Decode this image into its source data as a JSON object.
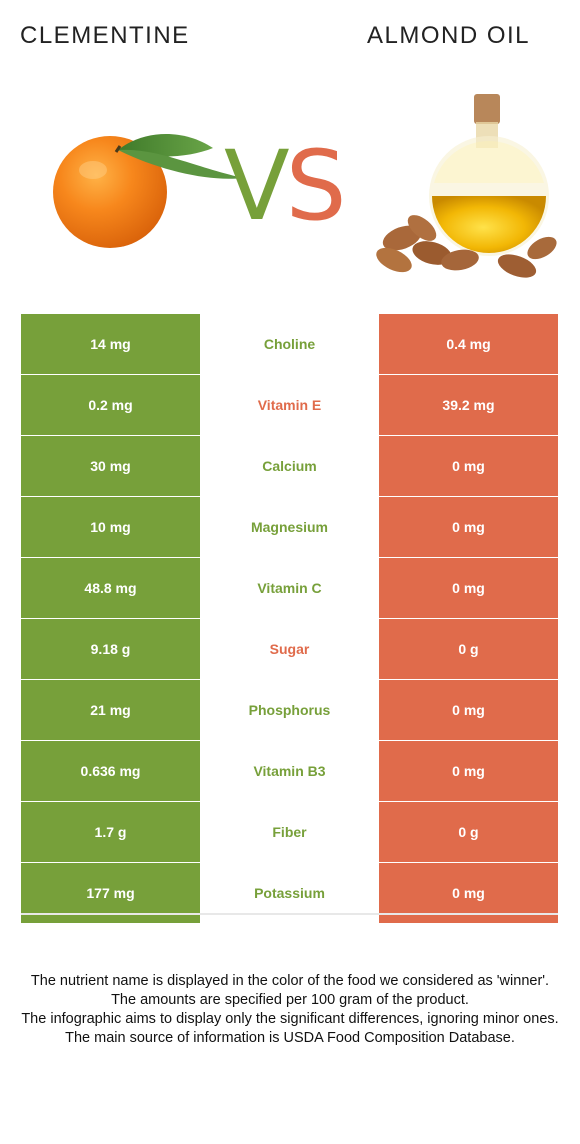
{
  "header": {
    "left_title": "CLEMENTINE",
    "right_title": "ALMOND OIL",
    "vs_v": "V",
    "vs_s": "S"
  },
  "colors": {
    "left_food": "#77a03a",
    "right_food": "#e06b4b"
  },
  "images": {
    "left": "clementine-image",
    "right": "almond-oil-image"
  },
  "rows": [
    {
      "left": "14 mg",
      "nutrient": "Choline",
      "right": "0.4 mg",
      "winner": "left"
    },
    {
      "left": "0.2 mg",
      "nutrient": "Vitamin E",
      "right": "39.2 mg",
      "winner": "right"
    },
    {
      "left": "30 mg",
      "nutrient": "Calcium",
      "right": "0 mg",
      "winner": "left"
    },
    {
      "left": "10 mg",
      "nutrient": "Magnesium",
      "right": "0 mg",
      "winner": "left"
    },
    {
      "left": "48.8 mg",
      "nutrient": "Vitamin C",
      "right": "0 mg",
      "winner": "left"
    },
    {
      "left": "9.18 g",
      "nutrient": "Sugar",
      "right": "0 g",
      "winner": "right"
    },
    {
      "left": "21 mg",
      "nutrient": "Phosphorus",
      "right": "0 mg",
      "winner": "left"
    },
    {
      "left": "0.636 mg",
      "nutrient": "Vitamin B3",
      "right": "0 mg",
      "winner": "left"
    },
    {
      "left": "1.7 g",
      "nutrient": "Fiber",
      "right": "0 g",
      "winner": "left"
    },
    {
      "left": "177 mg",
      "nutrient": "Potassium",
      "right": "0 mg",
      "winner": "left"
    }
  ],
  "footer": {
    "line1": "The nutrient name is displayed in the color of the food we considered as 'winner'.",
    "line2": "The amounts are specified per 100 gram of the product.",
    "line3": "The infographic aims to display only the significant differences, ignoring minor ones.",
    "line4": "The main source of information is USDA Food Composition Database."
  }
}
